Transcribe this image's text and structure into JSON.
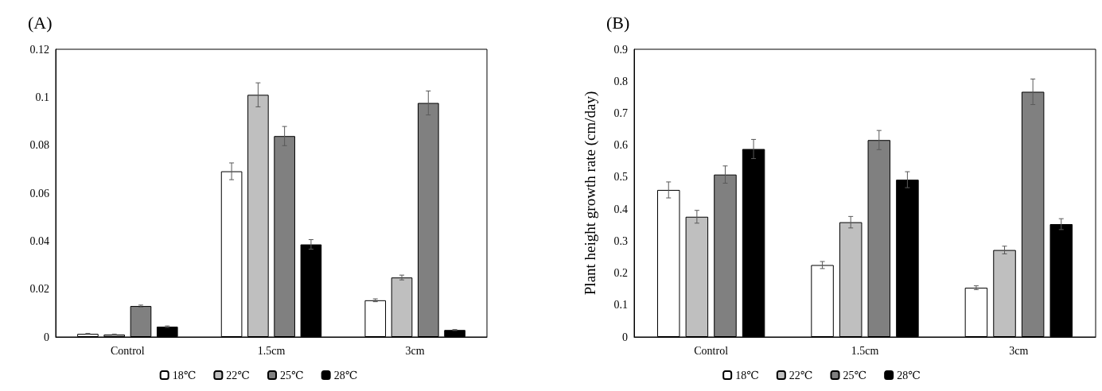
{
  "chart_data": [
    {
      "type": "bar",
      "title": "(A)",
      "categories": [
        "Control",
        "1.5cm",
        "3cm"
      ],
      "series": [
        {
          "name": "18℃",
          "color": "#ffffff",
          "values": [
            0.0013,
            0.0691,
            0.0153
          ],
          "errors": [
            0.0002,
            0.0035,
            0.0006
          ]
        },
        {
          "name": "22℃",
          "color": "#bfbfbf",
          "values": [
            0.001,
            0.101,
            0.0248
          ],
          "errors": [
            0.0002,
            0.005,
            0.001
          ]
        },
        {
          "name": "25℃",
          "color": "#808080",
          "values": [
            0.0129,
            0.0838,
            0.0976
          ],
          "errors": [
            0.0004,
            0.004,
            0.005
          ]
        },
        {
          "name": "28℃",
          "color": "#000000",
          "values": [
            0.0043,
            0.0386,
            0.0029
          ],
          "errors": [
            0.0003,
            0.002,
            0.0002
          ]
        }
      ],
      "ylim": [
        0,
        0.12
      ],
      "yticks": [
        0,
        0.02,
        0.04,
        0.06,
        0.08,
        0.1,
        0.12
      ],
      "grid": false,
      "legend": "bottom"
    },
    {
      "type": "bar",
      "title": "(B)",
      "ylabel": "Plant height growth rate (cm/day)",
      "categories": [
        "Control",
        "1.5cm",
        "3cm"
      ],
      "series": [
        {
          "name": "18℃",
          "color": "#ffffff",
          "values": [
            0.46,
            0.225,
            0.154
          ],
          "errors": [
            0.025,
            0.011,
            0.006
          ]
        },
        {
          "name": "22℃",
          "color": "#bfbfbf",
          "values": [
            0.376,
            0.359,
            0.272
          ],
          "errors": [
            0.02,
            0.018,
            0.012
          ]
        },
        {
          "name": "25℃",
          "color": "#808080",
          "values": [
            0.508,
            0.616,
            0.767
          ],
          "errors": [
            0.027,
            0.03,
            0.04
          ]
        },
        {
          "name": "28℃",
          "color": "#000000",
          "values": [
            0.588,
            0.492,
            0.353
          ],
          "errors": [
            0.03,
            0.025,
            0.017
          ]
        }
      ],
      "ylim": [
        0,
        0.9
      ],
      "yticks": [
        0,
        0.1,
        0.2,
        0.3,
        0.4,
        0.5,
        0.6,
        0.7,
        0.8,
        0.9
      ],
      "grid": false,
      "legend": "bottom"
    }
  ]
}
